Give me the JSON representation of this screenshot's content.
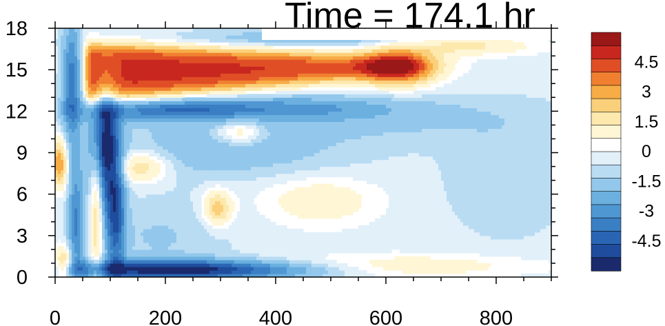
{
  "chart_data": {
    "type": "heatmap",
    "title": "Time = 174.1 hr",
    "xlim": [
      0,
      900
    ],
    "ylim": [
      0,
      18
    ],
    "x_ticks": [
      "0",
      "200",
      "400",
      "600",
      "800"
    ],
    "x_tick_values": [
      0,
      200,
      400,
      600,
      800
    ],
    "y_ticks": [
      "0",
      "3",
      "6",
      "9",
      "12",
      "15",
      "18"
    ],
    "y_tick_values": [
      0,
      3,
      6,
      9,
      12,
      15,
      18
    ],
    "colorbar": {
      "range": [
        -6,
        6
      ],
      "labels": [
        "4.5",
        "3",
        "1.5",
        "0",
        "-1.5",
        "-3",
        "-4.5"
      ],
      "label_values": [
        4.5,
        3,
        1.5,
        0,
        -1.5,
        -3,
        -4.5
      ],
      "levels": [
        -6,
        -5.25,
        -4.5,
        -3.75,
        -3,
        -2.25,
        -1.5,
        -0.75,
        -0.25,
        0.25,
        0.75,
        1.5,
        2.25,
        3,
        3.75,
        4.5,
        5.25,
        6
      ],
      "colors": [
        "#1a2a6c",
        "#1f4c9c",
        "#2a65b4",
        "#3a7fc4",
        "#4f97d2",
        "#6cb0e0",
        "#93c8ec",
        "#b9dcf3",
        "#e2f0fa",
        "#ffffff",
        "#fff6d6",
        "#fde8ad",
        "#fbd07a",
        "#f7ac45",
        "#f08030",
        "#e04e26",
        "#c8271f",
        "#9a1818"
      ]
    },
    "features": [
      {
        "kind": "band",
        "value": 5.6,
        "x": [
          55,
          650
        ],
        "y_top_start": 16.9,
        "y_top_end": 15.8,
        "y_bottom_start": 12.8,
        "y_bottom_end": 14.8
      },
      {
        "kind": "blob",
        "value": 5.0,
        "x": 625,
        "y": 15.2,
        "sx": 45,
        "sy": 0.9
      },
      {
        "kind": "blob",
        "value": 2.0,
        "x": 740,
        "y": 16.8,
        "sx": 90,
        "sy": 0.5
      },
      {
        "kind": "blob",
        "value": -3.0,
        "x": 200,
        "y": 12.1,
        "sx": 100,
        "sy": 0.55
      },
      {
        "kind": "blob",
        "value": -1.8,
        "x": 420,
        "y": 12.3,
        "sx": 140,
        "sy": 0.6
      },
      {
        "kind": "blob",
        "value": -5.5,
        "x": 200,
        "y": 0.55,
        "sx": 130,
        "sy": 0.5
      },
      {
        "kind": "blob",
        "value": -1.5,
        "x": 400,
        "y": 0.5,
        "sx": 120,
        "sy": 0.45
      },
      {
        "kind": "blob",
        "value": -5.5,
        "x": 90,
        "y": 9.5,
        "sx": 18,
        "sy": 3.0
      },
      {
        "kind": "blob",
        "value": -4.0,
        "x": 110,
        "y": 4.5,
        "sx": 12,
        "sy": 3.0
      },
      {
        "kind": "blob",
        "value": -3.5,
        "x": 30,
        "y": 14.0,
        "sx": 12,
        "sy": 3.0
      },
      {
        "kind": "blob",
        "value": -3.0,
        "x": 38,
        "y": 4.0,
        "sx": 10,
        "sy": 3.0
      },
      {
        "kind": "blob",
        "value": 4.0,
        "x": 8,
        "y": 8.3,
        "sx": 10,
        "sy": 1.2
      },
      {
        "kind": "blob",
        "value": 3.0,
        "x": 15,
        "y": 0.9,
        "sx": 12,
        "sy": 0.9
      },
      {
        "kind": "blob",
        "value": 3.0,
        "x": 75,
        "y": 5.5,
        "sx": 8,
        "sy": 4.0
      },
      {
        "kind": "blob",
        "value": 2.4,
        "x": 155,
        "y": 8.0,
        "sx": 35,
        "sy": 0.8
      },
      {
        "kind": "blob",
        "value": 2.8,
        "x": 295,
        "y": 5.0,
        "sx": 18,
        "sy": 0.9
      },
      {
        "kind": "blob",
        "value": 1.4,
        "x": 480,
        "y": 5.5,
        "sx": 70,
        "sy": 1.2
      },
      {
        "kind": "blob",
        "value": 2.0,
        "x": 335,
        "y": 10.5,
        "sx": 30,
        "sy": 0.6
      },
      {
        "kind": "blob",
        "value": 1.3,
        "x": 640,
        "y": 0.8,
        "sx": 160,
        "sy": 0.6
      },
      {
        "kind": "blob",
        "value": -1.2,
        "x": 300,
        "y": 9.0,
        "sx": 160,
        "sy": 1.3
      },
      {
        "kind": "blob",
        "value": -1.0,
        "x": 520,
        "y": 11.5,
        "sx": 250,
        "sy": 1.2
      },
      {
        "kind": "blob",
        "value": -1.5,
        "x": 450,
        "y": 17.2,
        "sx": 200,
        "sy": 0.5
      },
      {
        "kind": "blob",
        "value": -0.8,
        "x": 190,
        "y": 3.0,
        "sx": 90,
        "sy": 2.0
      },
      {
        "kind": "blob",
        "value": -0.7,
        "x": 820,
        "y": 7.0,
        "sx": 80,
        "sy": 3.0
      }
    ]
  }
}
